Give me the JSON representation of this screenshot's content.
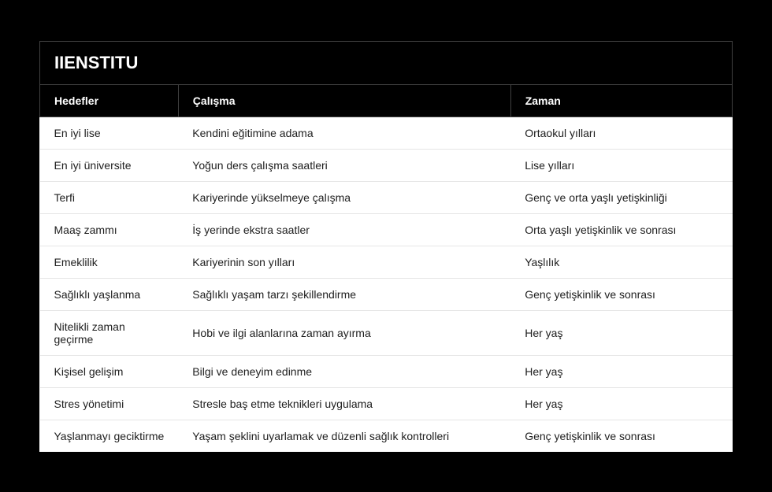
{
  "brand": "IIENSTITU",
  "table": {
    "type": "table",
    "columns": [
      "Hedefler",
      "Çalışma",
      "Zaman"
    ],
    "column_widths_pct": [
      20,
      48,
      32
    ],
    "rows": [
      [
        "En iyi lise",
        "Kendini eğitimine adama",
        "Ortaokul yılları"
      ],
      [
        "En iyi üniversite",
        "Yoğun ders çalışma saatleri",
        "Lise yılları"
      ],
      [
        "Terfi",
        "Kariyerinde yükselmeye çalışma",
        "Genç ve orta yaşlı yetişkinliği"
      ],
      [
        "Maaş zammı",
        "İş yerinde ekstra saatler",
        "Orta yaşlı yetişkinlik ve sonrası"
      ],
      [
        "Emeklilik",
        "Kariyerinin son yılları",
        "Yaşlılık"
      ],
      [
        "Sağlıklı yaşlanma",
        "Sağlıklı yaşam tarzı şekillendirme",
        "Genç yetişkinlik ve sonrası"
      ],
      [
        "Nitelikli zaman geçirme",
        "Hobi ve ilgi alanlarına zaman ayırma",
        "Her yaş"
      ],
      [
        "Kişisel gelişim",
        "Bilgi ve deneyim edinme",
        "Her yaş"
      ],
      [
        "Stres yönetimi",
        "Stresle baş etme teknikleri uygulama",
        "Her yaş"
      ],
      [
        "Yaşlanmayı geciktirme",
        "Yaşam şeklini uyarlamak ve düzenli sağlık kontrolleri",
        "Genç yetişkinlik ve sonrası"
      ]
    ],
    "colors": {
      "page_background": "#000000",
      "header_background": "#000000",
      "header_text": "#ffffff",
      "header_border": "#404040",
      "body_background": "#ffffff",
      "body_text": "#202020",
      "row_divider": "#e5e5e5"
    },
    "typography": {
      "brand_fontsize": 22,
      "brand_weight": 700,
      "header_fontsize": 14,
      "header_weight": 700,
      "body_fontsize": 14,
      "body_weight": 400,
      "font_family": "Segoe UI, Arial, sans-serif"
    }
  }
}
